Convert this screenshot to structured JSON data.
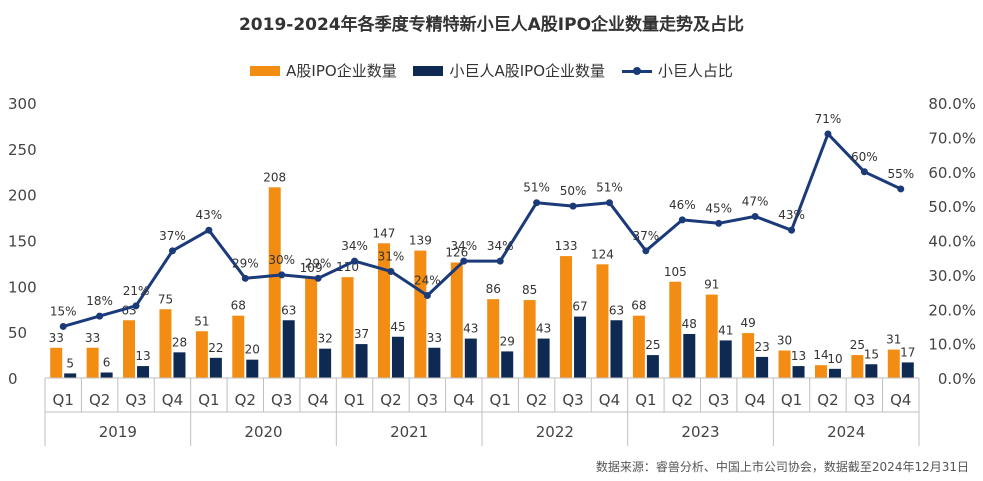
{
  "chart_data": {
    "type": "bar",
    "title": "2019-2024年各季度专精特新小巨人A股IPO企业数量走势及占比",
    "source": "数据来源：睿兽分析、中国上市公司协会，数据截至2024年12月31日",
    "quarters": [
      "Q1",
      "Q2",
      "Q3",
      "Q4",
      "Q1",
      "Q2",
      "Q3",
      "Q4",
      "Q1",
      "Q2",
      "Q3",
      "Q4",
      "Q1",
      "Q2",
      "Q3",
      "Q4",
      "Q1",
      "Q2",
      "Q3",
      "Q4",
      "Q1",
      "Q2",
      "Q3",
      "Q4"
    ],
    "years": [
      "2019",
      "2020",
      "2021",
      "2022",
      "2023",
      "2024"
    ],
    "y_left": {
      "ticks": [
        "0",
        "50",
        "100",
        "150",
        "200",
        "250",
        "300"
      ],
      "ylim": [
        0,
        300
      ]
    },
    "y_right": {
      "ticks": [
        "0.0%",
        "10.0%",
        "20.0%",
        "30.0%",
        "40.0%",
        "50.0%",
        "60.0%",
        "70.0%",
        "80.0%"
      ],
      "ylim": [
        0,
        80
      ]
    },
    "series": [
      {
        "name": "A股IPO企业数量",
        "kind": "bar",
        "color": "#F28C13",
        "values": [
          33,
          33,
          63,
          75,
          51,
          68,
          208,
          109,
          110,
          147,
          139,
          126,
          86,
          85,
          133,
          124,
          68,
          105,
          91,
          49,
          30,
          14,
          25,
          31
        ]
      },
      {
        "name": "小巨人A股IPO企业数量",
        "kind": "bar",
        "color": "#0F2A52",
        "values": [
          5,
          6,
          13,
          28,
          22,
          20,
          63,
          32,
          37,
          45,
          33,
          43,
          29,
          43,
          67,
          63,
          25,
          48,
          41,
          23,
          13,
          10,
          15,
          17
        ]
      },
      {
        "name": "小巨人占比",
        "kind": "line",
        "axis": "right",
        "color": "#1B3A7A",
        "values": [
          15,
          18,
          21,
          37,
          43,
          29,
          30,
          29,
          34,
          31,
          24,
          34,
          34,
          51,
          50,
          51,
          37,
          46,
          45,
          47,
          43,
          71,
          60,
          55
        ],
        "labels": [
          "15%",
          "18%",
          "21%",
          "37%",
          "43%",
          "29%",
          "30%",
          "29%",
          "34%",
          "31%",
          "24%",
          "34%",
          "34%",
          "51%",
          "50%",
          "51%",
          "37%",
          "46%",
          "45%",
          "47%",
          "43%",
          "71%",
          "60%",
          "55%"
        ]
      }
    ]
  }
}
